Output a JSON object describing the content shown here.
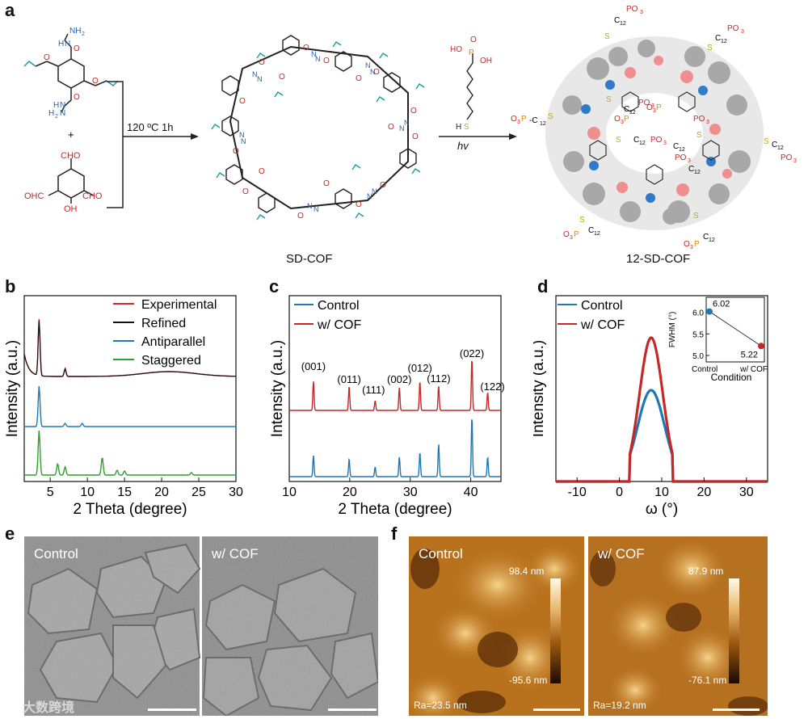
{
  "panel_labels": {
    "a": "a",
    "b": "b",
    "c": "c",
    "d": "d",
    "e": "e",
    "f": "f"
  },
  "panel_a": {
    "condition1": "120 ºC 1h",
    "condition2": "hv",
    "plus": "+",
    "product1": "SD-COF",
    "product2": "12-SD-COF",
    "reagent1_groups": [
      "NH",
      "2",
      "O",
      "O",
      "O",
      "O",
      "H",
      "2",
      "N",
      "N",
      "H",
      "N",
      "H"
    ],
    "reagent2_groups": [
      "CHO",
      "OHC",
      "CHO",
      "OH"
    ],
    "thiol_groups": [
      "HO",
      "O",
      "P",
      "OH",
      "S",
      "H"
    ],
    "chain_labels": [
      "PO",
      "3",
      "S",
      "C",
      "12",
      "O",
      "3",
      "P"
    ]
  },
  "chart_data": [
    {
      "panel": "b",
      "type": "line",
      "xlabel": "2 Theta (degree)",
      "ylabel": "Intensity (a.u.)",
      "xlim": [
        1.5,
        30
      ],
      "xticks": [
        "5",
        "10",
        "15",
        "20",
        "25",
        "30"
      ],
      "series": [
        {
          "name": "Experimental",
          "color": "#d62728",
          "peaks": [
            3.5,
            7.0
          ]
        },
        {
          "name": "Refined",
          "color": "#111111",
          "peaks": [
            3.5,
            7.0
          ]
        },
        {
          "name": "Antiparallel",
          "color": "#1f77b4",
          "peaks": [
            3.5,
            7.0,
            9.3
          ]
        },
        {
          "name": "Staggered",
          "color": "#2ca02c",
          "peaks": [
            3.5,
            6.0,
            7.0,
            12.0,
            14.0,
            15.0,
            24.0
          ]
        }
      ]
    },
    {
      "panel": "c",
      "type": "line",
      "xlabel": "2 Theta (degree)",
      "ylabel": "Intensity (a.u.)",
      "xlim": [
        10,
        45
      ],
      "xticks": [
        "10",
        "20",
        "30",
        "40"
      ],
      "series": [
        {
          "name": "Control",
          "color": "#1f77b4",
          "peaks": [
            14.0,
            19.9,
            24.2,
            28.2,
            31.6,
            34.7,
            40.2,
            42.8
          ]
        },
        {
          "name": "w/ COF",
          "color": "#c62828",
          "peaks": [
            14.0,
            19.9,
            24.2,
            28.2,
            31.6,
            34.7,
            40.2,
            42.8
          ]
        }
      ],
      "peak_labels": [
        "(001)",
        "(011)",
        "(111)",
        "(002)",
        "(012)",
        "(112)",
        "(022)",
        "(122)"
      ]
    },
    {
      "panel": "d",
      "type": "line",
      "xlabel": "ω (°)",
      "ylabel": "Intensity (a.u.)",
      "xlim": [
        -15,
        35
      ],
      "xticks": [
        "-10",
        "0",
        "10",
        "20",
        "30"
      ],
      "series": [
        {
          "name": "Control",
          "color": "#1f77b4",
          "center": 7.5,
          "fwhm": 6.02
        },
        {
          "name": "w/ COF",
          "color": "#c62828",
          "center": 7.5,
          "fwhm": 5.22
        }
      ],
      "inset": {
        "type": "scatter",
        "xlabel": "Condition",
        "ylabel": "FWHM (°)",
        "categories": [
          "Control",
          "w/ COF"
        ],
        "values": [
          6.02,
          5.22
        ],
        "value_labels": [
          "6.02",
          "5.22"
        ],
        "yticks": [
          "5.0",
          "5.5",
          "6.0"
        ],
        "ylim": [
          4.85,
          6.35
        ]
      }
    }
  ],
  "panel_e": {
    "left_label": "Control",
    "right_label": "w/ COF"
  },
  "panel_f": {
    "left_label": "Control",
    "right_label": "w/ COF",
    "left_scale_max": "98.4 nm",
    "left_scale_min": "-95.6 nm",
    "right_scale_max": "87.9 nm",
    "right_scale_min": "-76.1 nm",
    "left_ra": "Ra=23.5 nm",
    "right_ra": "Ra=19.2 nm"
  },
  "watermark": "大数跨境"
}
